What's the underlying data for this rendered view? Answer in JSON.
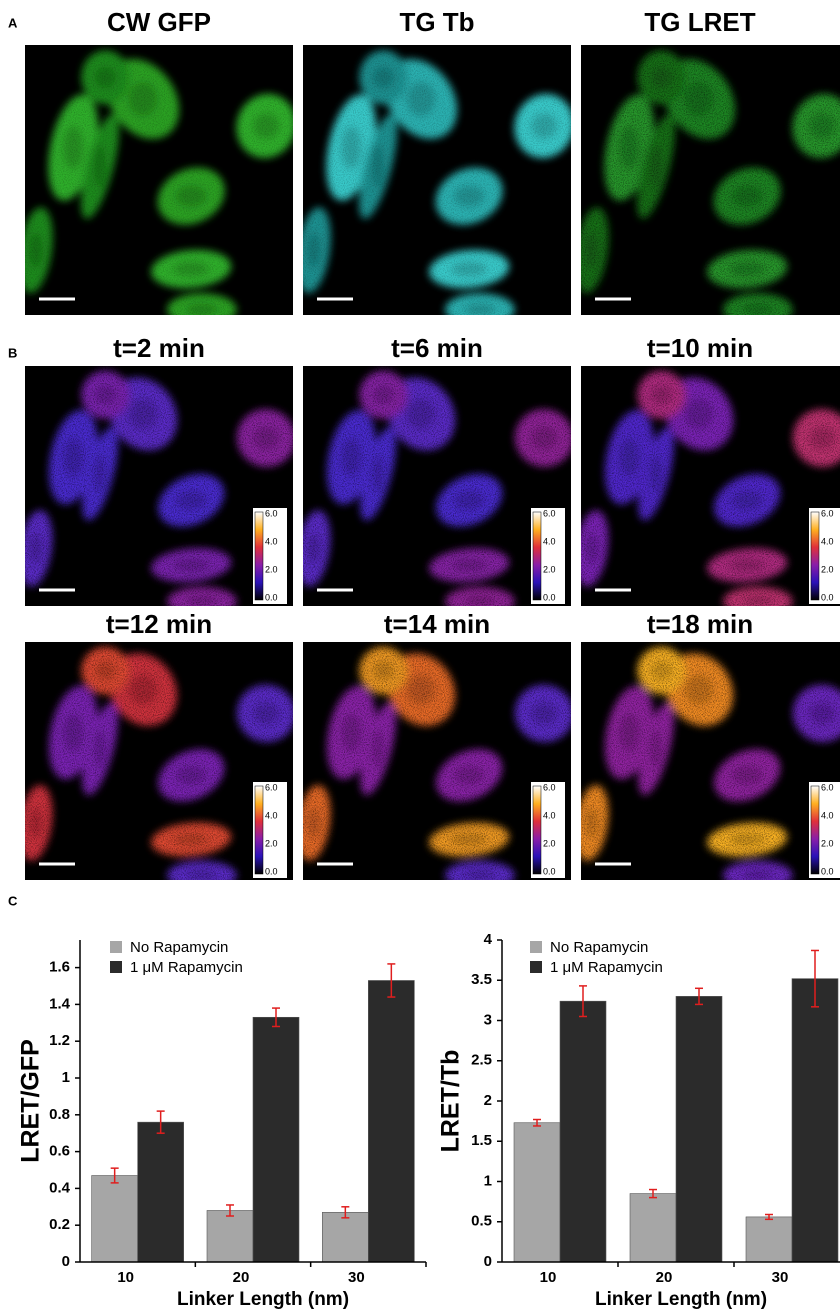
{
  "panels": {
    "A": {
      "label": "A",
      "titles": [
        "CW GFP",
        "TG Tb",
        "TG LRET"
      ]
    },
    "B": {
      "label": "B",
      "titles": [
        "t=2 min",
        "t=6 min",
        "t=10 min",
        "t=12 min",
        "t=14 min",
        "t=18 min"
      ],
      "colorbar_labels": [
        "6.0",
        "4.0",
        "2.0",
        "0.0"
      ]
    },
    "C": {
      "label": "C"
    }
  },
  "chart_data": [
    {
      "type": "bar",
      "ylabel": "LRET/GFP",
      "xlabel": "Linker Length (nm)",
      "categories": [
        "10",
        "20",
        "30"
      ],
      "series": [
        {
          "name": "No Rapamycin",
          "color": "#a6a6a6",
          "values": [
            0.47,
            0.28,
            0.27
          ],
          "errors": [
            0.04,
            0.03,
            0.03
          ]
        },
        {
          "name": "1 μM Rapamycin",
          "color": "#2b2b2b",
          "values": [
            0.76,
            1.33,
            1.53
          ],
          "errors": [
            0.06,
            0.05,
            0.09
          ]
        }
      ],
      "errorbar_color": "#e01e1e",
      "ylim": [
        0,
        1.75
      ],
      "yticks": [
        0,
        0.2,
        0.4,
        0.6,
        0.8,
        1,
        1.2,
        1.4,
        1.6
      ]
    },
    {
      "type": "bar",
      "ylabel": "LRET/Tb",
      "xlabel": "Linker Length (nm)",
      "categories": [
        "10",
        "20",
        "30"
      ],
      "series": [
        {
          "name": "No Rapamycin",
          "color": "#a6a6a6",
          "values": [
            1.73,
            0.85,
            0.56
          ],
          "errors": [
            0.04,
            0.05,
            0.03
          ]
        },
        {
          "name": "1 μM Rapamycin",
          "color": "#2b2b2b",
          "values": [
            3.24,
            3.3,
            3.52
          ],
          "errors": [
            0.19,
            0.1,
            0.35
          ]
        }
      ],
      "errorbar_color": "#e01e1e",
      "ylim": [
        0,
        4
      ],
      "yticks": [
        0,
        0.5,
        1,
        1.5,
        2,
        2.5,
        3,
        3.5,
        4
      ]
    }
  ]
}
